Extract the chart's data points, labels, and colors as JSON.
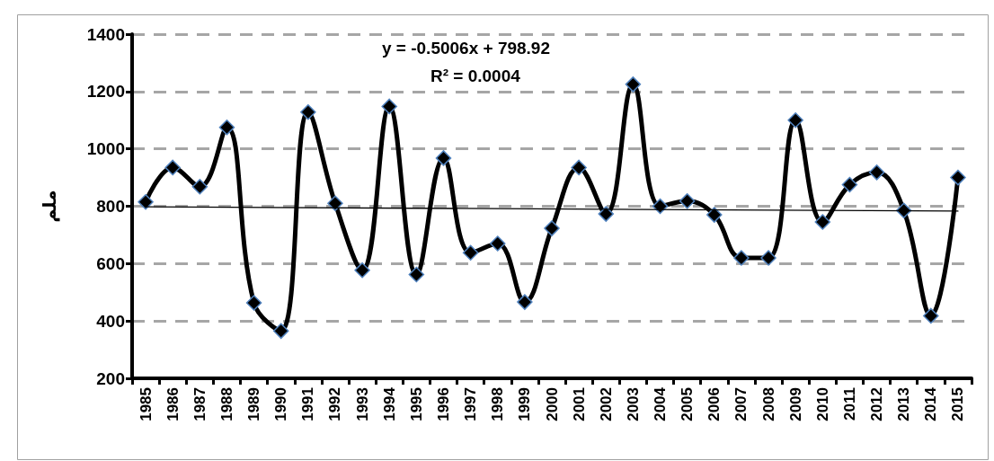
{
  "chart_data": {
    "type": "line",
    "ylabel": "ملم",
    "categories": [
      "1985",
      "1986",
      "1987",
      "1988",
      "1989",
      "1990",
      "1991",
      "1992",
      "1993",
      "1994",
      "1995",
      "1996",
      "1997",
      "1998",
      "1999",
      "2000",
      "2001",
      "2002",
      "2003",
      "2004",
      "2005",
      "2006",
      "2007",
      "2008",
      "2009",
      "2010",
      "2011",
      "2012",
      "2013",
      "2014",
      "2015"
    ],
    "series": [
      {
        "color": "#000000",
        "marker": "diamond",
        "values": [
          815,
          935,
          868,
          1075,
          463,
          365,
          1128,
          810,
          577,
          1148,
          562,
          968,
          638,
          670,
          466,
          723,
          935,
          773,
          1225,
          800,
          818,
          770,
          620,
          620,
          1100,
          745,
          875,
          918,
          785,
          418,
          900
        ]
      },
      {
        "type": "line",
        "color": "#000000",
        "marker": "none",
        "values": [
          798,
          null,
          null,
          null,
          null,
          null,
          null,
          null,
          null,
          null,
          null,
          null,
          null,
          null,
          null,
          null,
          null,
          null,
          null,
          null,
          null,
          null,
          null,
          null,
          null,
          null,
          null,
          null,
          null,
          null,
          783
        ]
      }
    ],
    "ylim": [
      200,
      1400
    ],
    "yticks": [
      200,
      400,
      600,
      800,
      1000,
      1200,
      1400
    ],
    "grid": "y",
    "line_style": "solid",
    "annotations": [
      "y = -0.5006x + 798.92",
      "R² = 0.0004"
    ]
  }
}
